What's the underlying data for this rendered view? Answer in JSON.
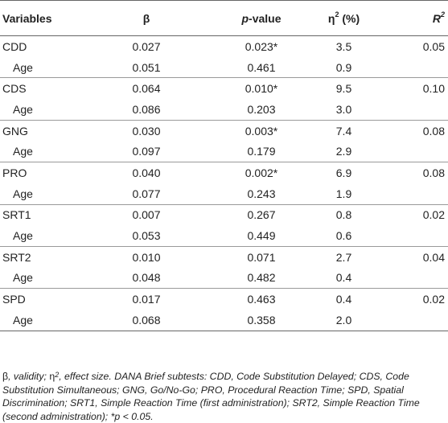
{
  "headers": {
    "variables": "Variables",
    "beta": "β",
    "p_italic": "p",
    "p_rest": "-value",
    "eta_base": "η",
    "eta_sup": "2",
    "eta_unit": " (%)",
    "r_base": "R",
    "r_sup": "2"
  },
  "rows": [
    {
      "var": "CDD",
      "beta": "0.027",
      "p": "0.023*",
      "eta": "3.5",
      "r2": "0.05"
    },
    {
      "var": "Age",
      "beta": "0.051",
      "p": "0.461",
      "eta": "0.9",
      "r2": ""
    },
    {
      "var": "CDS",
      "beta": "0.064",
      "p": "0.010*",
      "eta": "9.5",
      "r2": "0.10"
    },
    {
      "var": "Age",
      "beta": "0.086",
      "p": "0.203",
      "eta": "3.0",
      "r2": ""
    },
    {
      "var": "GNG",
      "beta": "0.030",
      "p": "0.003*",
      "eta": "7.4",
      "r2": "0.08"
    },
    {
      "var": "Age",
      "beta": "0.097",
      "p": "0.179",
      "eta": "2.9",
      "r2": ""
    },
    {
      "var": "PRO",
      "beta": "0.040",
      "p": "0.002*",
      "eta": "6.9",
      "r2": "0.08"
    },
    {
      "var": "Age",
      "beta": "0.077",
      "p": "0.243",
      "eta": "1.9",
      "r2": ""
    },
    {
      "var": "SRT1",
      "beta": "0.007",
      "p": "0.267",
      "eta": "0.8",
      "r2": "0.02"
    },
    {
      "var": "Age",
      "beta": "0.053",
      "p": "0.449",
      "eta": "0.6",
      "r2": ""
    },
    {
      "var": "SRT2",
      "beta": "0.010",
      "p": "0.071",
      "eta": "2.7",
      "r2": "0.04"
    },
    {
      "var": "Age",
      "beta": "0.048",
      "p": "0.482",
      "eta": "0.4",
      "r2": ""
    },
    {
      "var": "SPD",
      "beta": "0.017",
      "p": "0.463",
      "eta": "0.4",
      "r2": "0.02"
    },
    {
      "var": "Age",
      "beta": "0.068",
      "p": "0.358",
      "eta": "2.0",
      "r2": ""
    }
  ],
  "note": {
    "beta_sym": "β",
    "part1": ", validity; ",
    "eta_sym": "η",
    "eta_sup": "2",
    "part2": ", effect size. DANA Brief subtests: CDD, Code Substitution Delayed; CDS, Code Substitution Simultaneous; GNG, Go/No-Go; PRO, Procedural Reaction Time; SPD, Spatial Discrimination; SRT1, Simple Reaction Time (first administration); SRT2, Simple Reaction Time (second administration); *p < 0.05."
  }
}
